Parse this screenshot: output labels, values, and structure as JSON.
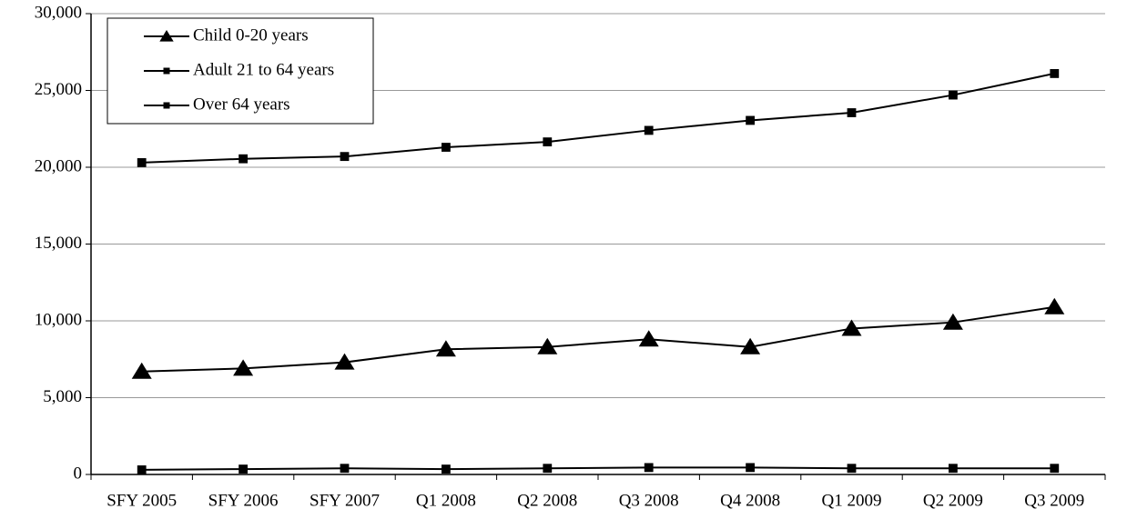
{
  "chart_data": {
    "type": "line",
    "categories": [
      "SFY 2005",
      "SFY 2006",
      "SFY 2007",
      "Q1 2008",
      "Q2 2008",
      "Q3 2008",
      "Q4 2008",
      "Q1 2009",
      "Q2 2009",
      "Q3 2009"
    ],
    "series": [
      {
        "name": "Child 0-20 years",
        "color": "#000000",
        "marker": "triangle",
        "values": [
          6700,
          6900,
          7300,
          8150,
          8300,
          8800,
          8300,
          9500,
          9900,
          10900
        ]
      },
      {
        "name": "Adult 21 to 64 years",
        "color": "#000000",
        "marker": "square",
        "values": [
          20300,
          20550,
          20700,
          21300,
          21650,
          22400,
          23050,
          23550,
          24700,
          26100
        ]
      },
      {
        "name": "Over 64 years",
        "color": "#000000",
        "marker": "square",
        "values": [
          300,
          350,
          400,
          350,
          400,
          450,
          450,
          400,
          400,
          400
        ]
      }
    ],
    "ylim": [
      0,
      30000
    ],
    "yticks": [
      0,
      {
        "value": 5000,
        "label": "5,000"
      },
      {
        "value": 10000,
        "label": "10,000"
      },
      {
        "value": 15000,
        "label": "15,000"
      },
      {
        "value": 20000,
        "label": "20,000"
      },
      {
        "value": 25000,
        "label": "25,000"
      },
      {
        "value": 30000,
        "label": "30,000"
      }
    ],
    "grid": true,
    "legend": "upper left"
  }
}
